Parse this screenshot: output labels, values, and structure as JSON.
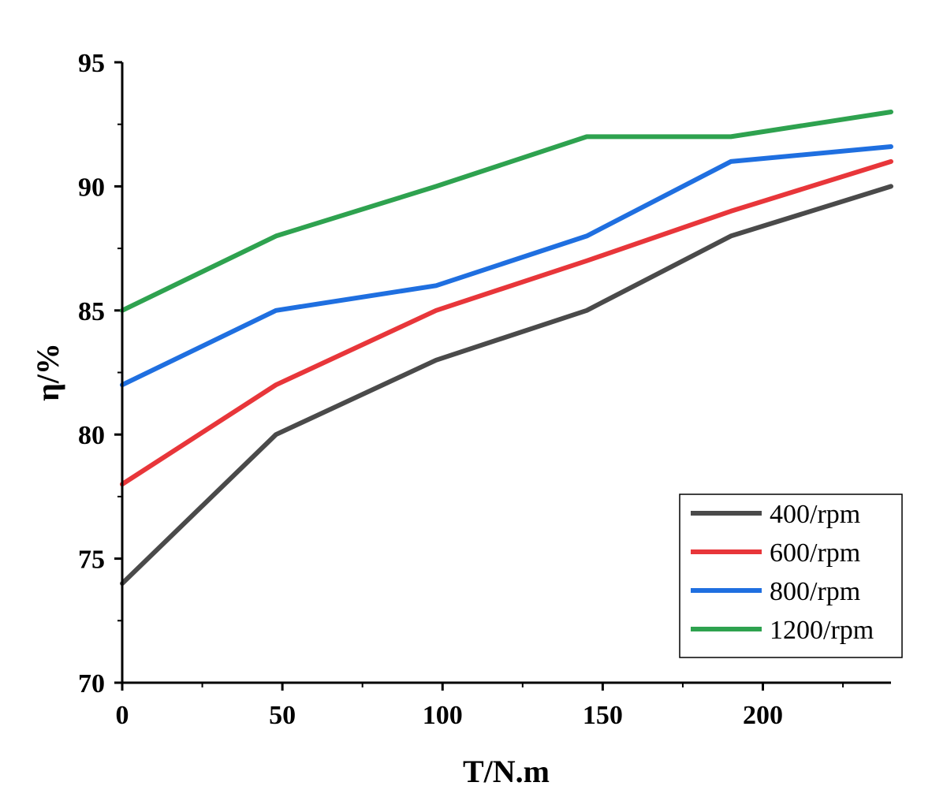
{
  "chart_data": {
    "type": "line",
    "title": "",
    "xlabel": "T/N.m",
    "ylabel": "η/%",
    "xlim": [
      0,
      240
    ],
    "ylim": [
      70,
      95
    ],
    "xticks": [
      0,
      50,
      100,
      150,
      200
    ],
    "yticks": [
      70,
      75,
      80,
      85,
      90,
      95
    ],
    "x": [
      0,
      48,
      98,
      145,
      190,
      240
    ],
    "series": [
      {
        "name": "400/rpm",
        "color": "#4a4a4a",
        "values": [
          74,
          80,
          83,
          85,
          88,
          90
        ]
      },
      {
        "name": "600/rpm",
        "color": "#e8363a",
        "values": [
          78,
          82,
          85,
          87,
          89,
          91
        ]
      },
      {
        "name": "800/rpm",
        "color": "#1f6fe0",
        "values": [
          82,
          85,
          86,
          88,
          91,
          91.6
        ]
      },
      {
        "name": "1200/rpm",
        "color": "#2ea24f",
        "values": [
          85,
          88,
          90,
          92,
          92,
          93
        ]
      }
    ],
    "legend_position": "bottom-right",
    "grid": false
  }
}
